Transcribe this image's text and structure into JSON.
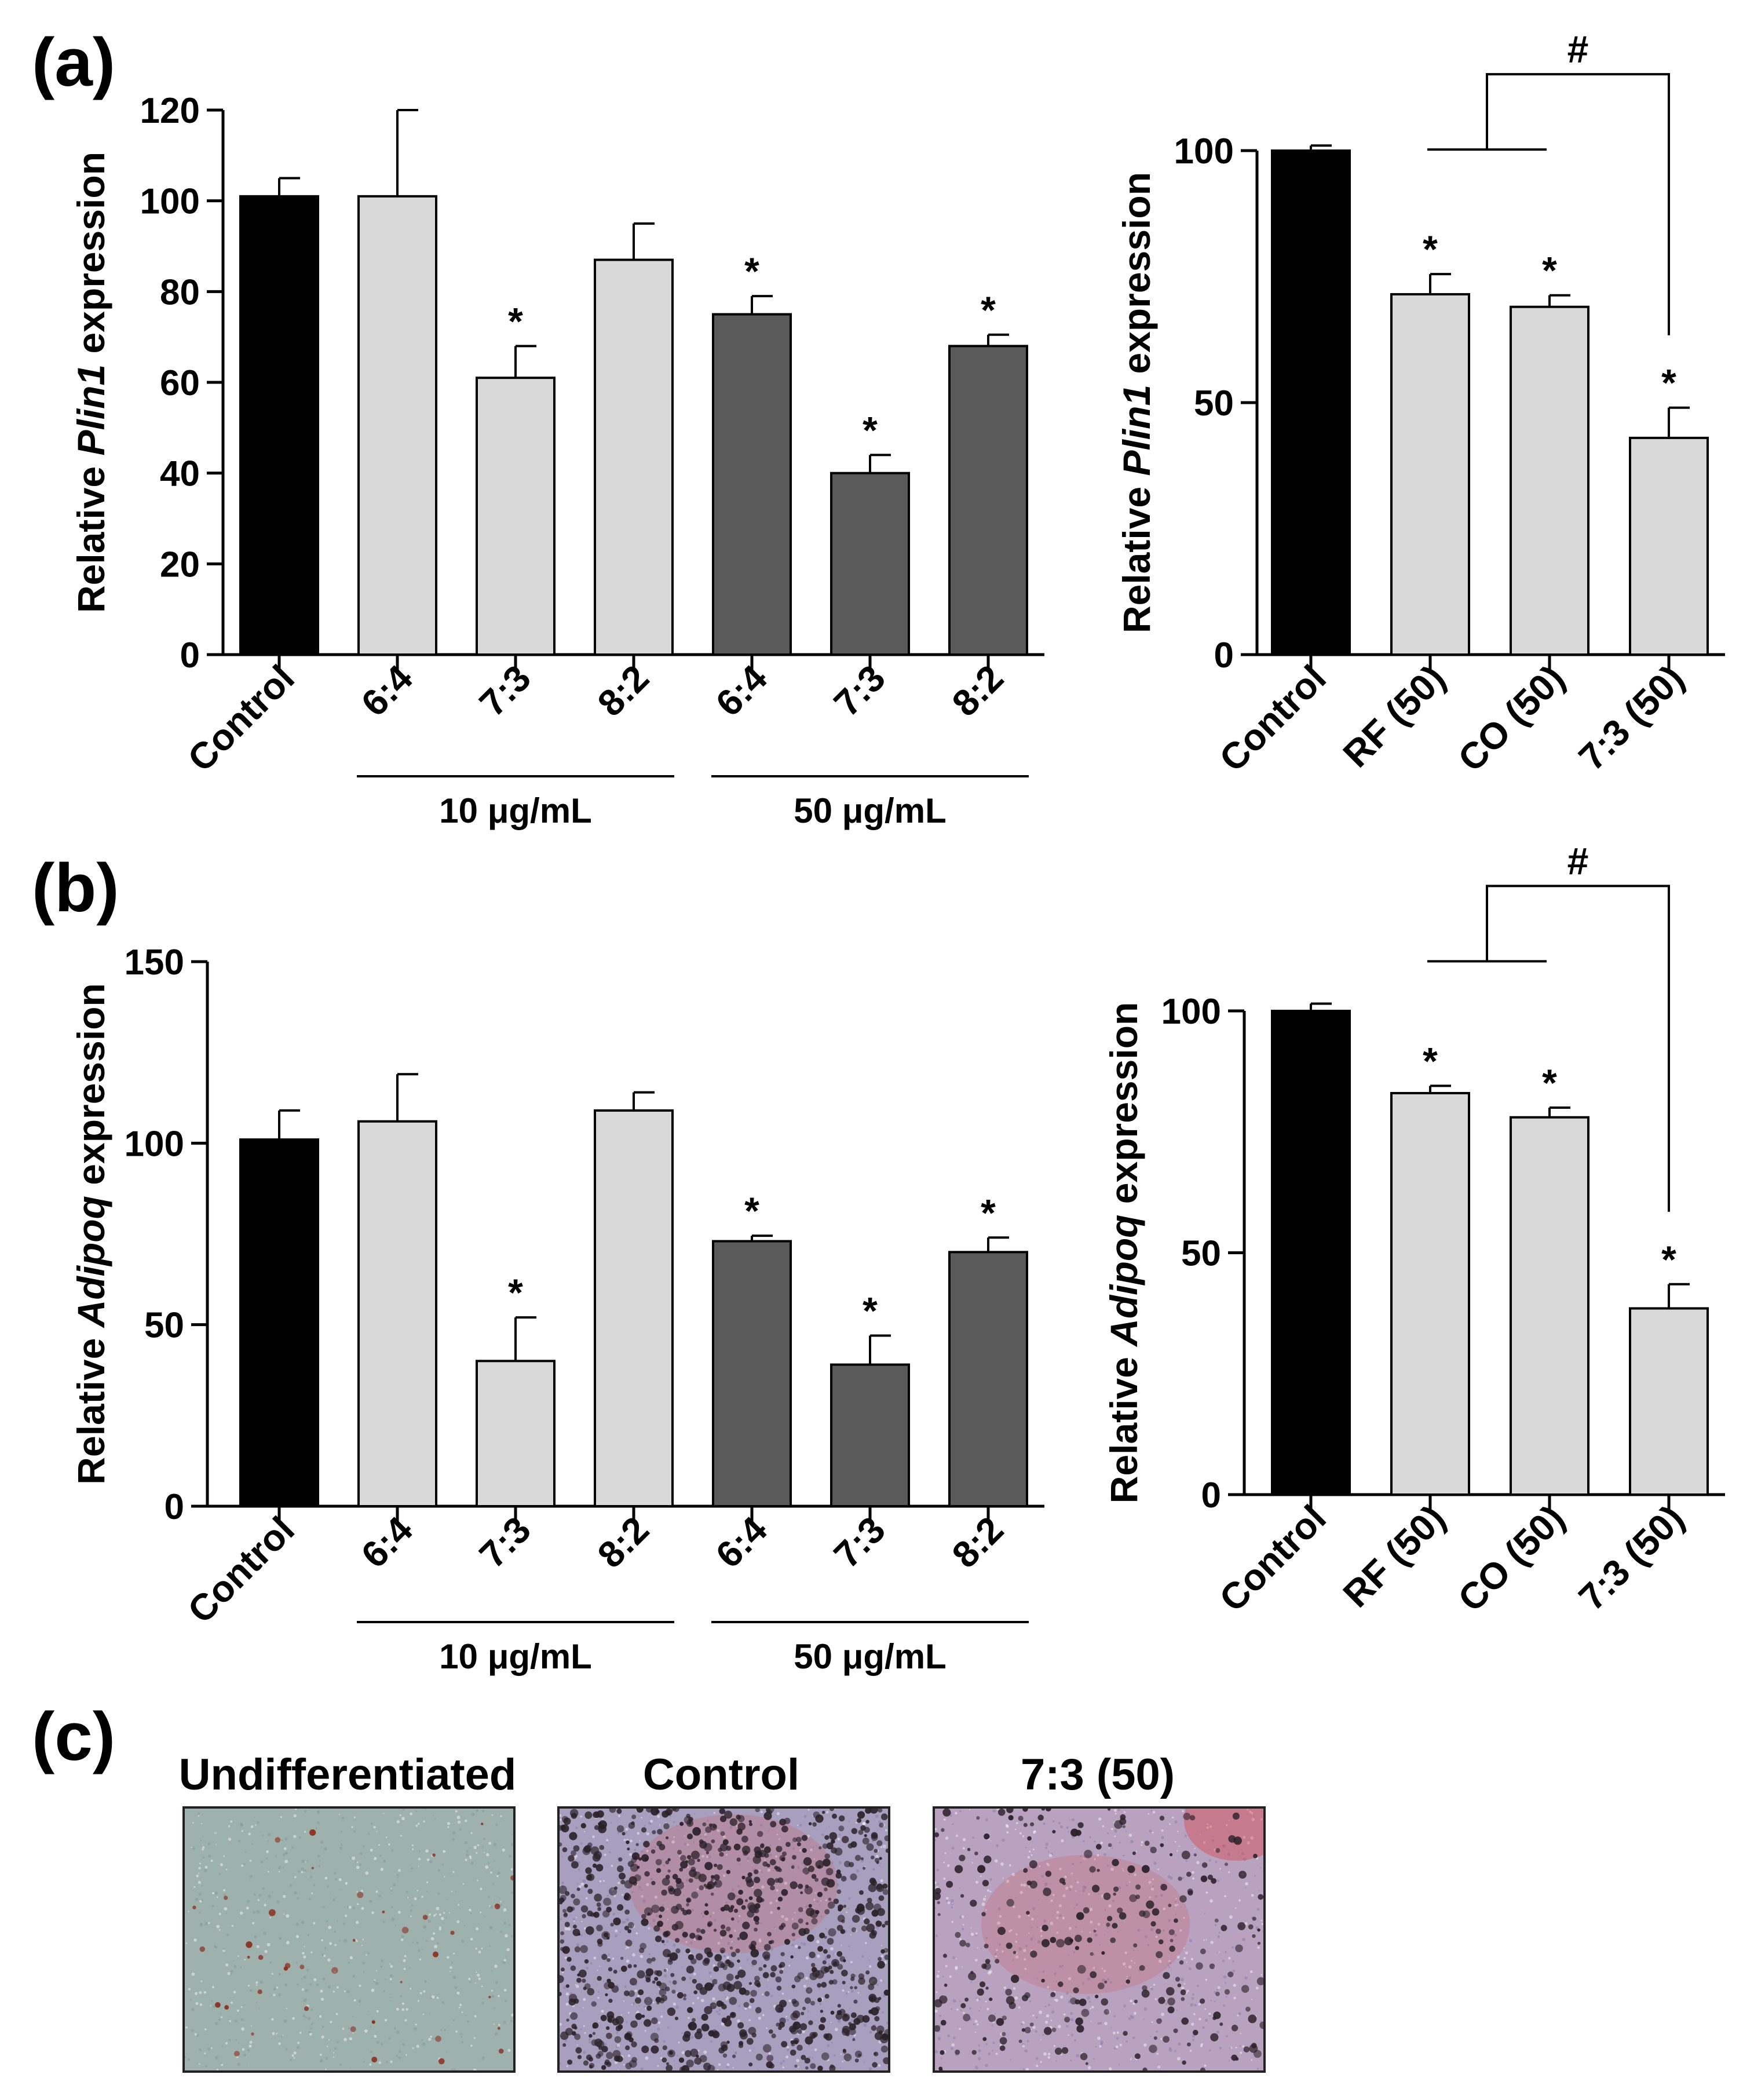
{
  "panel_labels": {
    "a": "(a)",
    "b": "(b)",
    "c": "(c)"
  },
  "colors": {
    "control": "#000000",
    "light": "#d9d9d9",
    "dark": "#5a5a5a",
    "axis": "#000000"
  },
  "chart_data": [
    {
      "id": "a-left",
      "type": "bar",
      "ylabel_prefix": "Relative ",
      "ylabel_gene": "Plin1",
      "ylabel_suffix": " expression",
      "ylim": [
        0,
        120
      ],
      "yticks": [
        0,
        20,
        40,
        60,
        80,
        100,
        120
      ],
      "categories": [
        "Control",
        "6:4",
        "7:3",
        "8:2",
        "6:4",
        "7:3",
        "8:2"
      ],
      "values": [
        101,
        101,
        61,
        87,
        75,
        40,
        68
      ],
      "errors": [
        4,
        19,
        7,
        8,
        4,
        4,
        2.5
      ],
      "significant": [
        false,
        false,
        true,
        false,
        true,
        true,
        true
      ],
      "bar_colors": [
        "control",
        "light",
        "light",
        "light",
        "dark",
        "dark",
        "dark"
      ],
      "groups": [
        {
          "label": "10 μg/mL",
          "from": 1,
          "to": 3
        },
        {
          "label": "50 μg/mL",
          "from": 4,
          "to": 6
        }
      ],
      "star": "*"
    },
    {
      "id": "a-right",
      "type": "bar",
      "ylabel_prefix": "Relative ",
      "ylabel_gene": "Plin1",
      "ylabel_suffix": " expression",
      "ylim": [
        0,
        100
      ],
      "yticks": [
        0,
        50,
        100
      ],
      "categories": [
        "Control",
        "RF (50)",
        "CO (50)",
        "7:3 (50)"
      ],
      "values": [
        100,
        71.5,
        69,
        43
      ],
      "errors": [
        1,
        4,
        2.3,
        6
      ],
      "significant": [
        false,
        true,
        true,
        true
      ],
      "bar_colors": [
        "control",
        "light",
        "light",
        "light"
      ],
      "bracket": {
        "label": "#",
        "from": [
          1,
          2
        ],
        "to": 3
      },
      "star": "*"
    },
    {
      "id": "b-left",
      "type": "bar",
      "ylabel_prefix": "Relative ",
      "ylabel_gene": "Adipoq",
      "ylabel_suffix": " expression",
      "ylim": [
        0,
        150
      ],
      "yticks": [
        0,
        50,
        100,
        150
      ],
      "categories": [
        "Control",
        "6:4",
        "7:3",
        "8:2",
        "6:4",
        "7:3",
        "8:2"
      ],
      "values": [
        101,
        106,
        40,
        109,
        73,
        39,
        70
      ],
      "errors": [
        8,
        13,
        12,
        5,
        1.5,
        8,
        4
      ],
      "significant": [
        false,
        false,
        true,
        false,
        true,
        true,
        true
      ],
      "bar_colors": [
        "control",
        "light",
        "light",
        "light",
        "dark",
        "dark",
        "dark"
      ],
      "groups": [
        {
          "label": "10 μg/mL",
          "from": 1,
          "to": 3
        },
        {
          "label": "50 μg/mL",
          "from": 4,
          "to": 6
        }
      ],
      "star": "*"
    },
    {
      "id": "b-right",
      "type": "bar",
      "ylabel_prefix": "Relative ",
      "ylabel_gene": "Adipoq",
      "ylabel_suffix": " expression",
      "ylim": [
        0,
        100
      ],
      "yticks": [
        0,
        50,
        100
      ],
      "categories": [
        "Control",
        "RF (50)",
        "CO (50)",
        "7:3 (50)"
      ],
      "values": [
        100,
        83,
        78,
        38.5
      ],
      "errors": [
        1.5,
        1.5,
        2,
        5
      ],
      "significant": [
        false,
        true,
        true,
        true
      ],
      "bar_colors": [
        "control",
        "light",
        "light",
        "light"
      ],
      "bracket": {
        "label": "#",
        "from": [
          1,
          2
        ],
        "to": 3
      },
      "star": "*"
    }
  ],
  "micrographs": [
    {
      "title": "Undifferentiated",
      "bg": "#9fb1ad",
      "stain": "#8a2a1c",
      "density": 40
    },
    {
      "title": "Control",
      "bg": "#a89fbe",
      "stain": "#2a2028",
      "density": 900
    },
    {
      "title": "7:3 (50)",
      "bg": "#b8a2c0",
      "stain": "#2a2028",
      "density": 260
    }
  ]
}
